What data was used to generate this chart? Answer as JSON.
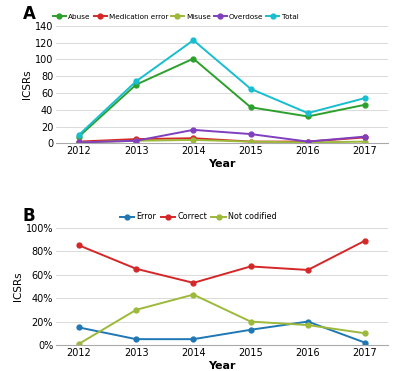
{
  "years": [
    2012,
    2013,
    2014,
    2015,
    2016,
    2017
  ],
  "chart_A": {
    "Abuse": [
      8,
      70,
      101,
      43,
      32,
      46
    ],
    "Medication error": [
      2,
      5,
      6,
      2,
      2,
      7
    ],
    "Misuse": [
      1,
      3,
      4,
      2,
      1,
      2
    ],
    "Overdose": [
      1,
      3,
      16,
      11,
      2,
      8
    ],
    "Total": [
      10,
      74,
      123,
      65,
      36,
      54
    ],
    "colors": {
      "Abuse": "#2ca02c",
      "Medication error": "#d62728",
      "Misuse": "#9db939",
      "Overdose": "#7f3fbf",
      "Total": "#17becf"
    },
    "ylim": [
      0,
      140
    ],
    "yticks": [
      0,
      20,
      40,
      60,
      80,
      100,
      120,
      140
    ],
    "ylabel": "ICSRs",
    "xlabel": "Year"
  },
  "chart_B": {
    "Error": [
      0.15,
      0.05,
      0.05,
      0.13,
      0.2,
      0.02
    ],
    "Correct": [
      0.85,
      0.65,
      0.53,
      0.67,
      0.64,
      0.89
    ],
    "Not codified": [
      0.01,
      0.3,
      0.43,
      0.2,
      0.17,
      0.1
    ],
    "colors": {
      "Error": "#1f77b4",
      "Correct": "#d62728",
      "Not codified": "#9db939"
    },
    "ylim": [
      0,
      1.0
    ],
    "yticks": [
      0,
      0.2,
      0.4,
      0.6,
      0.8,
      1.0
    ],
    "yticklabels": [
      "0%",
      "20%",
      "40%",
      "60%",
      "80%",
      "100%"
    ],
    "ylabel": "ICSRs",
    "xlabel": "Year"
  }
}
